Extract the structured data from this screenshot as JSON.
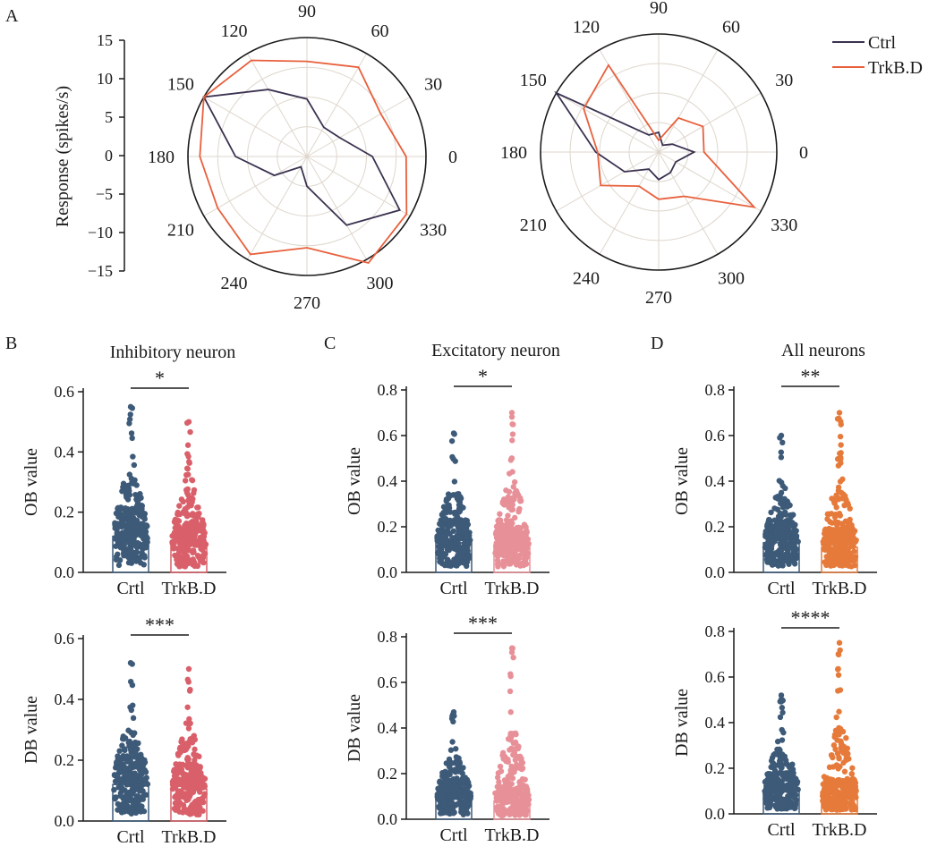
{
  "figure": {
    "panel_letters": [
      "A",
      "B",
      "C",
      "D"
    ],
    "xlabel_ctrl": "Crtl",
    "xlabel_trk": "TrkB.D"
  },
  "colors": {
    "ctrl_line": "#3b3250",
    "trk_line": "#e8603c",
    "inhib_ctrl": "#3d5a78",
    "inhib_trk": "#d9606a",
    "excit_ctrl": "#3d5a78",
    "excit_trk": "#e89098",
    "all_ctrl": "#3d5a78",
    "all_trk": "#e67a3a",
    "grid": "#ded6cc"
  },
  "chart_data": [
    {
      "id": "polar-1",
      "type": "line",
      "subtype": "polar",
      "ylabel": "Response (spikes/s)",
      "rlim": [
        -15,
        15
      ],
      "r_ticks": [
        15,
        10,
        5,
        0,
        -5,
        -10,
        -15
      ],
      "angle_ticks": [
        0,
        30,
        60,
        90,
        120,
        150,
        180,
        210,
        240,
        270,
        300,
        330
      ],
      "legend": {
        "entries": [
          "Ctrl",
          "TrkB.D"
        ],
        "position": "right"
      },
      "series": [
        {
          "name": "Ctrl",
          "angles": [
            0,
            30,
            60,
            90,
            120,
            150,
            180,
            210,
            240,
            270,
            300,
            330
          ],
          "values": [
            1.5,
            -5.5,
            -6.5,
            -0.5,
            4.5,
            15,
            3,
            -5.5,
            -12,
            -7.5,
            5,
            12
          ]
        },
        {
          "name": "TrkB.D",
          "angles": [
            0,
            30,
            60,
            90,
            120,
            150,
            180,
            210,
            240,
            270,
            300,
            330
          ],
          "values": [
            10,
            6.5,
            11,
            9,
            13,
            15,
            12,
            11,
            13.5,
            8,
            16,
            14
          ]
        }
      ]
    },
    {
      "id": "polar-2",
      "type": "line",
      "subtype": "polar",
      "rlim": [
        -15,
        15
      ],
      "angle_ticks": [
        0,
        30,
        60,
        90,
        120,
        150,
        180,
        210,
        240,
        270,
        300,
        330
      ],
      "series": [
        {
          "name": "Ctrl",
          "angles": [
            0,
            30,
            60,
            90,
            120,
            150,
            180,
            210,
            240,
            270,
            300,
            330
          ],
          "values": [
            -6,
            -11,
            -13,
            -10,
            -10,
            15,
            1,
            -5,
            -10,
            -8,
            -9,
            -10
          ]
        },
        {
          "name": "TrkB.D",
          "angles": [
            0,
            30,
            60,
            90,
            120,
            150,
            180,
            210,
            240,
            270,
            300,
            330
          ],
          "values": [
            -3.5,
            -2,
            -5,
            -12,
            10.5,
            7,
            0.5,
            2,
            -5,
            -3,
            -2,
            13
          ]
        }
      ]
    },
    {
      "id": "B-top",
      "type": "scatter",
      "subtype": "bar-dot",
      "title": "Inhibitory neuron",
      "ylabel": "OB value",
      "categories": [
        "Crtl",
        "TrkB.D"
      ],
      "ylim": [
        0,
        0.6
      ],
      "y_ticks": [
        "0.0",
        "0.2",
        "0.4",
        "0.6"
      ],
      "bar_means": [
        0.12,
        0.095
      ],
      "max_points": [
        0.55,
        0.5
      ],
      "significance": "*"
    },
    {
      "id": "B-bottom",
      "type": "scatter",
      "subtype": "bar-dot",
      "ylabel": "DB value",
      "categories": [
        "Crtl",
        "TrkB.D"
      ],
      "ylim": [
        0,
        0.6
      ],
      "y_ticks": [
        "0.0",
        "0.2",
        "0.4",
        "0.6"
      ],
      "bar_means": [
        0.12,
        0.105
      ],
      "max_points": [
        0.52,
        0.5
      ],
      "significance": "***"
    },
    {
      "id": "C-top",
      "type": "scatter",
      "subtype": "bar-dot",
      "title": "Excitatory neuron",
      "ylabel": "OB value",
      "categories": [
        "Crtl",
        "TrkB.D"
      ],
      "ylim": [
        0,
        0.8
      ],
      "y_ticks": [
        "0.0",
        "0.2",
        "0.4",
        "0.6",
        "0.8"
      ],
      "bar_means": [
        0.13,
        0.12
      ],
      "max_points": [
        0.61,
        0.7
      ],
      "significance": "*"
    },
    {
      "id": "C-bottom",
      "type": "scatter",
      "subtype": "bar-dot",
      "ylabel": "DB value",
      "categories": [
        "Crtl",
        "TrkB.D"
      ],
      "ylim": [
        0,
        0.8
      ],
      "y_ticks": [
        "0.0",
        "0.2",
        "0.4",
        "0.6",
        "0.8"
      ],
      "bar_means": [
        0.1,
        0.08
      ],
      "max_points": [
        0.47,
        0.75
      ],
      "significance": "***"
    },
    {
      "id": "D-top",
      "type": "scatter",
      "subtype": "bar-dot",
      "title": "All neurons",
      "ylabel": "OB value",
      "categories": [
        "Crtl",
        "TrkB.D"
      ],
      "ylim": [
        0,
        0.8
      ],
      "y_ticks": [
        "0.0",
        "0.2",
        "0.4",
        "0.6",
        "0.8"
      ],
      "bar_means": [
        0.13,
        0.11
      ],
      "max_points": [
        0.6,
        0.7
      ],
      "significance": "**"
    },
    {
      "id": "D-bottom",
      "type": "scatter",
      "subtype": "bar-dot",
      "ylabel": "DB value",
      "categories": [
        "Crtl",
        "TrkB.D"
      ],
      "ylim": [
        0,
        0.8
      ],
      "y_ticks": [
        "0.0",
        "0.2",
        "0.4",
        "0.6",
        "0.8"
      ],
      "bar_means": [
        0.1,
        0.085
      ],
      "max_points": [
        0.52,
        0.75
      ],
      "significance": "****"
    }
  ]
}
